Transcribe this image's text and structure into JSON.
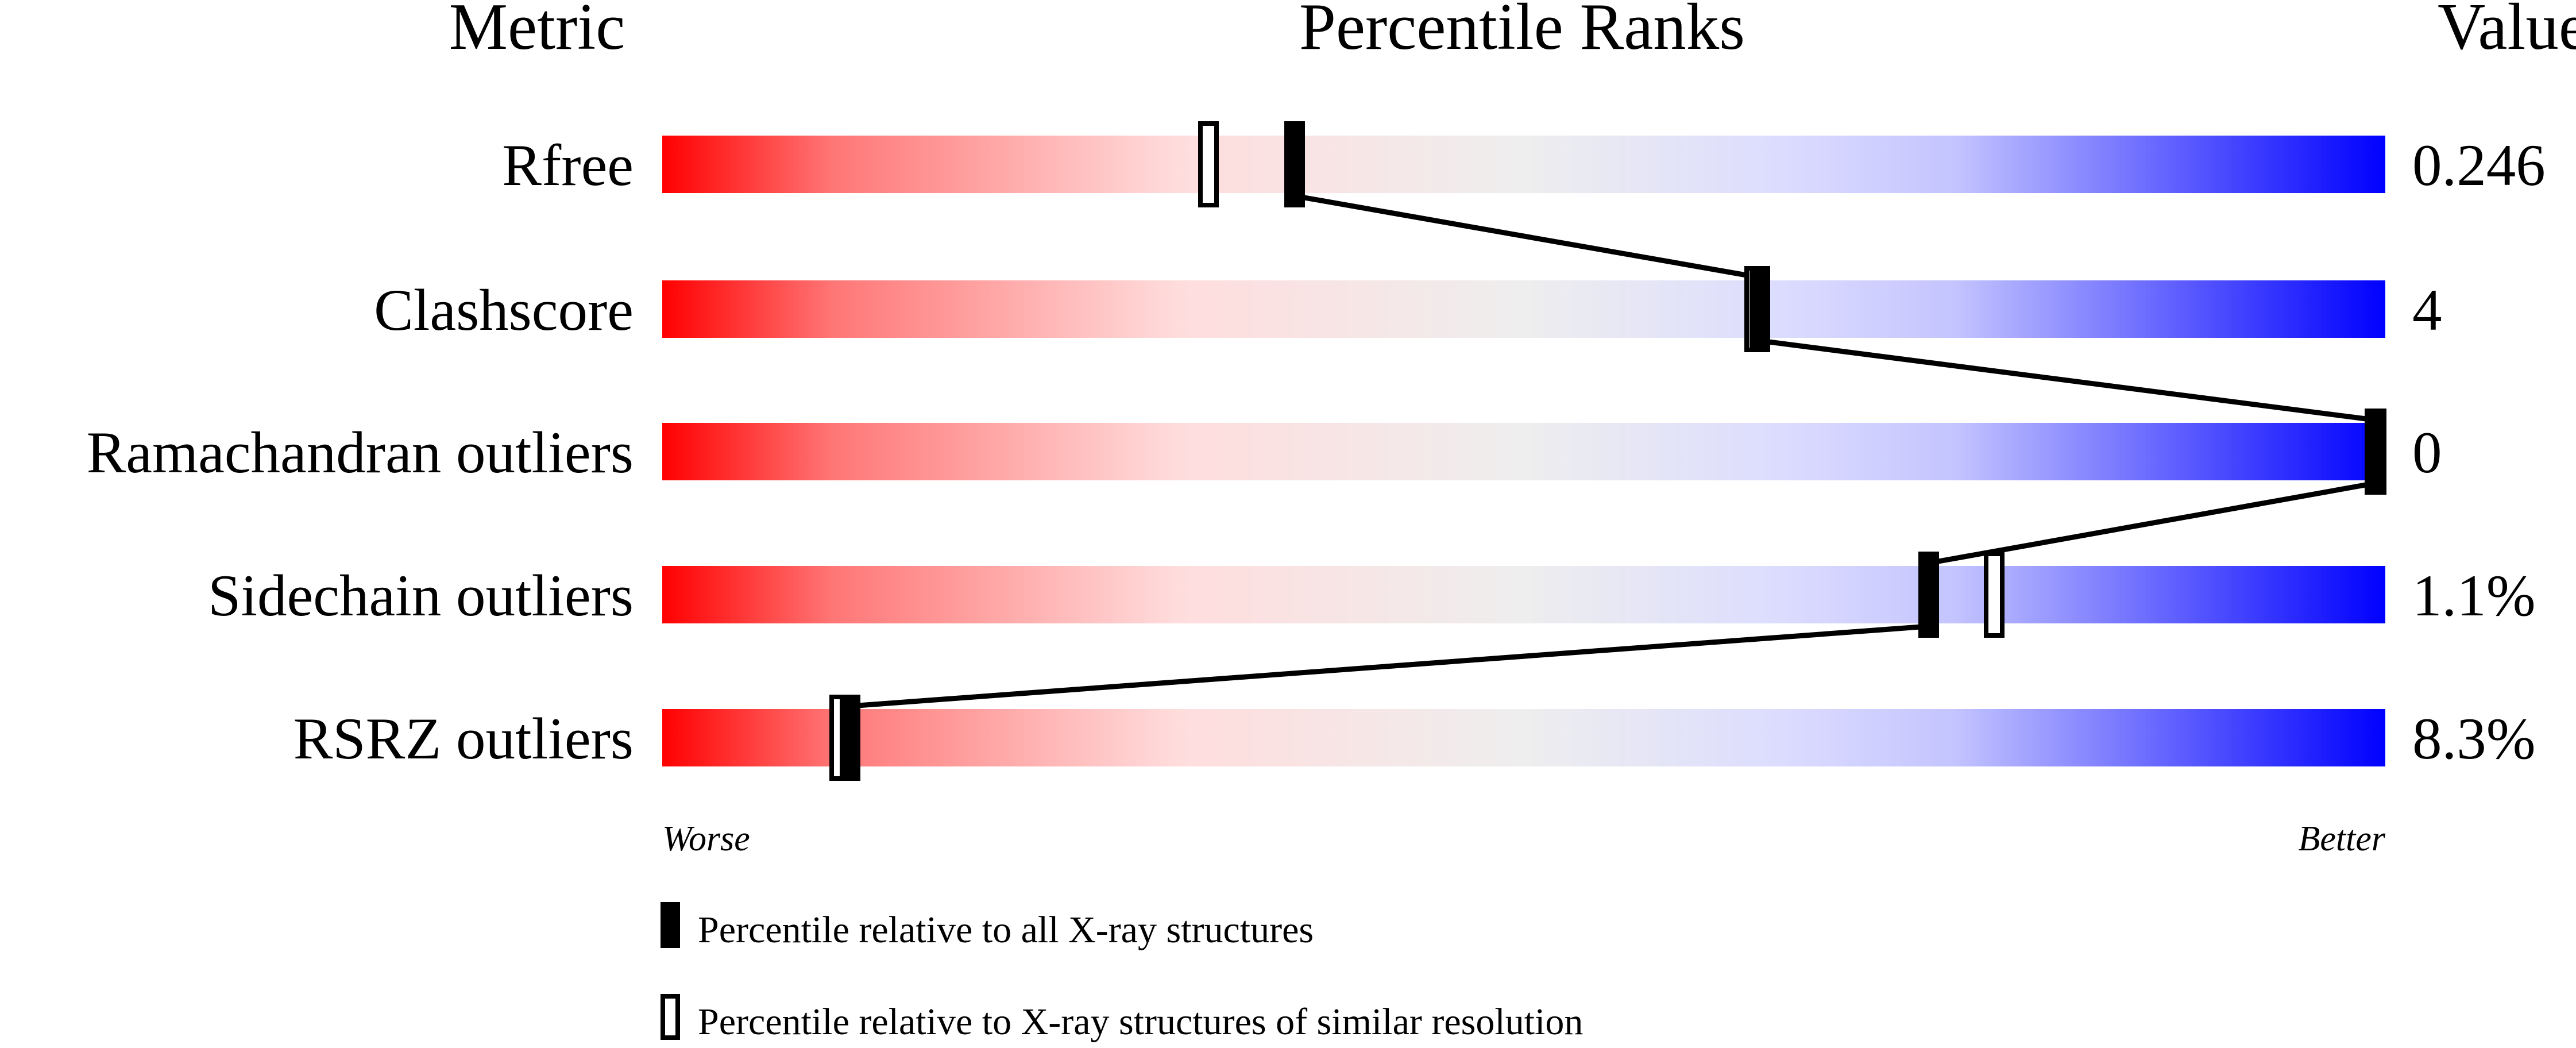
{
  "chart_data": {
    "type": "percentile-slider",
    "headers": {
      "metric": "Metric",
      "ranks": "Percentile Ranks",
      "value": "Value"
    },
    "xlim": [
      0,
      100
    ],
    "axis_labels": {
      "left": "Worse",
      "right": "Better"
    },
    "gradient_colors": [
      "#ff0000",
      "#ff7777",
      "#ffdddd",
      "#eeeeee",
      "#dcdcff",
      "#c4c4ff",
      "#0000ff"
    ],
    "metrics": [
      {
        "name": "Rfree",
        "value": "0.246",
        "percentile_all": 36.7,
        "percentile_similar": 31.7
      },
      {
        "name": "Clashscore",
        "value": "4",
        "percentile_all": 63.7,
        "percentile_similar": 63.4
      },
      {
        "name": "Ramachandran outliers",
        "value": "0",
        "percentile_all": 100,
        "percentile_similar": 100
      },
      {
        "name": "Sidechain outliers",
        "value": "1.1%",
        "percentile_all": 73.5,
        "percentile_similar": 77.3
      },
      {
        "name": "RSRZ outliers",
        "value": "8.3%",
        "percentile_all": 10.9,
        "percentile_similar": 10.3
      }
    ],
    "legend": [
      {
        "marker": "filled",
        "label": "Percentile relative to all X-ray structures"
      },
      {
        "marker": "open",
        "label": "Percentile relative to X-ray structures of similar resolution"
      }
    ],
    "legend_placement": "bottom"
  }
}
